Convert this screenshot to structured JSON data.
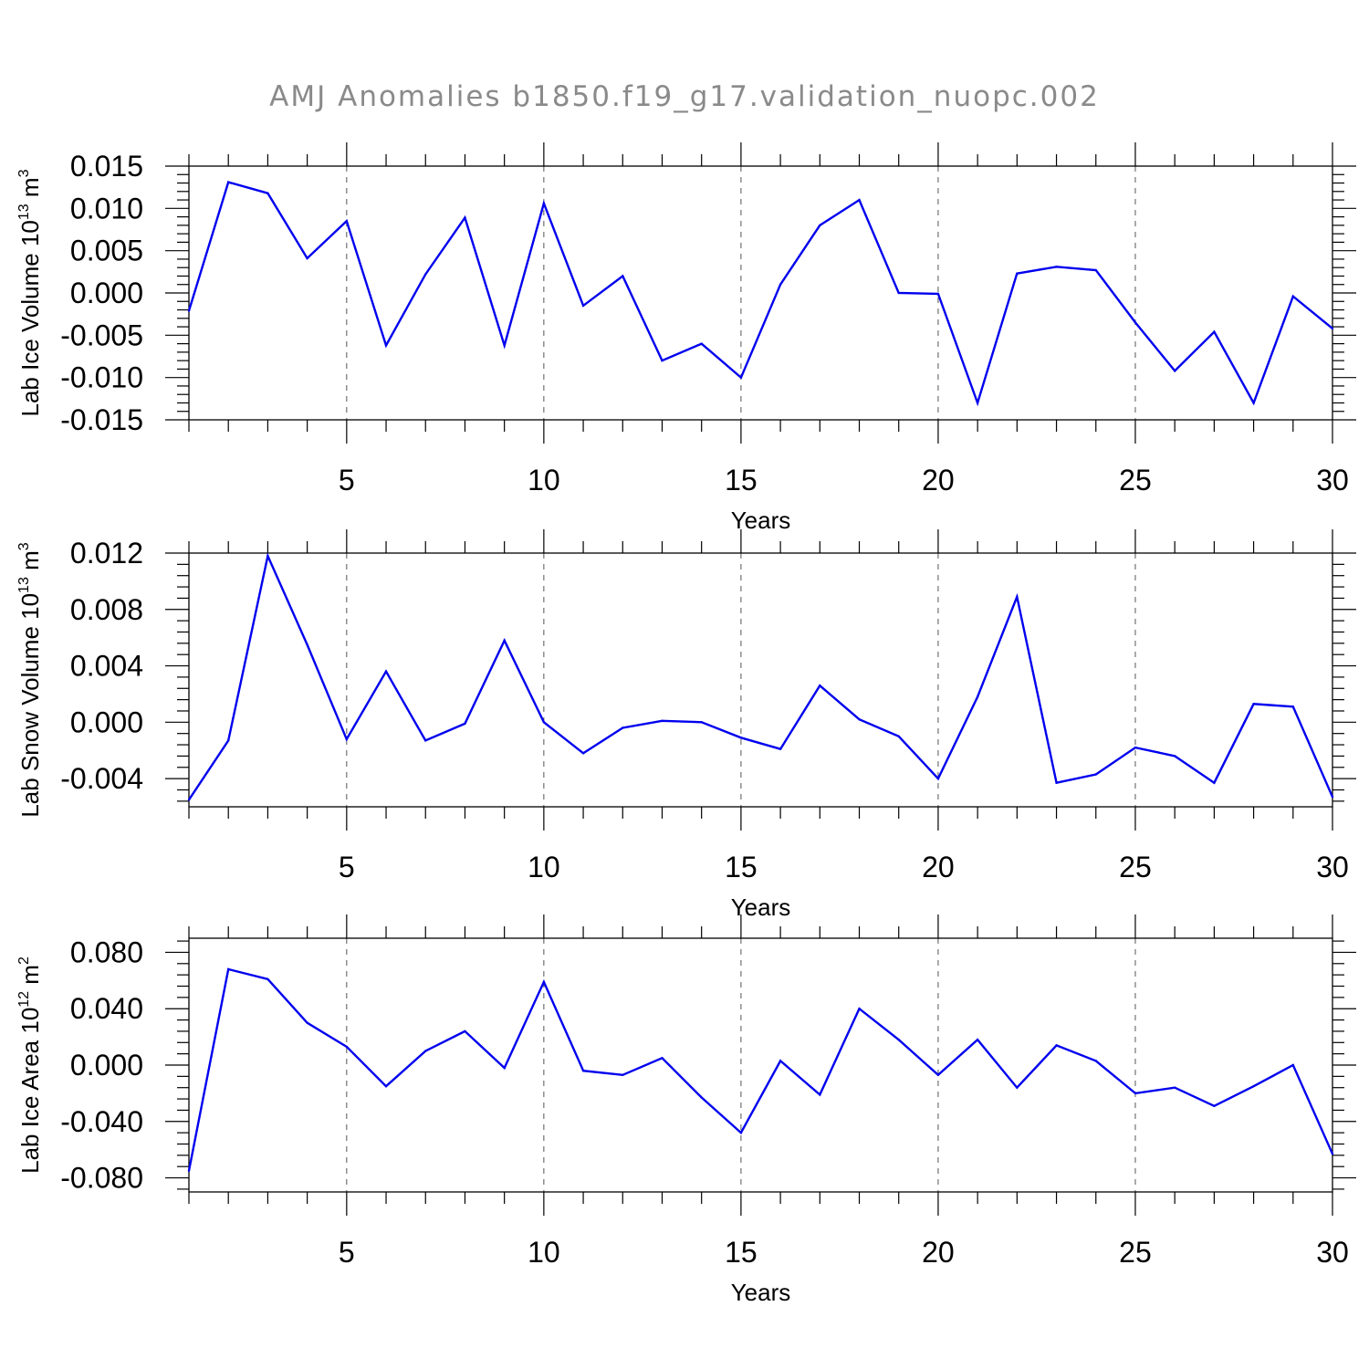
{
  "title": "AMJ Anomalies b1850.f19_g17.validation_nuopc.002",
  "line_color": "#0000ee",
  "chart_data": [
    {
      "type": "line",
      "xlabel": "Years",
      "ylabel": {
        "text": "Lab Ice Volume 10",
        "exp": "13",
        "unit": " m",
        "unit_exp": "3"
      },
      "xlim": [
        1,
        30
      ],
      "ylim": [
        -0.015,
        0.015
      ],
      "yticks": [
        -0.015,
        -0.01,
        -0.005,
        0,
        0.005,
        0.01,
        0.015
      ],
      "ytick_labels": [
        "-0.015",
        "-0.010",
        "-0.005",
        "0.000",
        "0.005",
        "0.010",
        "0.015"
      ],
      "xticks": [
        5,
        10,
        15,
        20,
        25,
        30
      ],
      "xtick_labels": [
        "5",
        "10",
        "15",
        "20",
        "25",
        "30"
      ],
      "grid": "vertical dashed at major x ticks",
      "x": [
        1,
        2,
        3,
        4,
        5,
        6,
        7,
        8,
        9,
        10,
        11,
        12,
        13,
        14,
        15,
        16,
        17,
        18,
        19,
        20,
        21,
        22,
        23,
        24,
        25,
        26,
        27,
        28,
        29,
        30
      ],
      "values": [
        -0.0021,
        0.0131,
        0.0118,
        0.0041,
        0.0085,
        -0.0062,
        0.0022,
        0.0089,
        -0.0062,
        0.0106,
        -0.0015,
        0.002,
        -0.008,
        -0.006,
        -0.01,
        0.001,
        0.008,
        0.011,
        0.0,
        -0.0001,
        -0.013,
        0.0023,
        0.0031,
        0.0027,
        -0.0035,
        -0.0092,
        -0.0046,
        -0.013,
        -0.0004,
        -0.0042
      ]
    },
    {
      "type": "line",
      "xlabel": "Years",
      "ylabel": {
        "text": "Lab Snow Volume 10",
        "exp": "13",
        "unit": " m",
        "unit_exp": "3"
      },
      "xlim": [
        1,
        30
      ],
      "ylim": [
        -0.006,
        0.012
      ],
      "yticks": [
        -0.004,
        0,
        0.004,
        0.008,
        0.012
      ],
      "ytick_labels": [
        "-0.004",
        "0.000",
        "0.004",
        "0.008",
        "0.012"
      ],
      "xticks": [
        5,
        10,
        15,
        20,
        25,
        30
      ],
      "xtick_labels": [
        "5",
        "10",
        "15",
        "20",
        "25",
        "30"
      ],
      "grid": "vertical dashed at major x ticks",
      "x": [
        1,
        2,
        3,
        4,
        5,
        6,
        7,
        8,
        9,
        10,
        11,
        12,
        13,
        14,
        15,
        16,
        17,
        18,
        19,
        20,
        21,
        22,
        23,
        24,
        25,
        26,
        27,
        28,
        29,
        30
      ],
      "values": [
        -0.0055,
        -0.0013,
        0.0118,
        0.0055,
        -0.0012,
        0.0036,
        -0.0013,
        -0.0001,
        0.0058,
        0.0,
        -0.0022,
        -0.0004,
        0.0001,
        0.0,
        -0.0011,
        -0.0019,
        0.0026,
        0.0002,
        -0.001,
        -0.004,
        0.0018,
        0.0089,
        -0.0043,
        -0.0037,
        -0.0018,
        -0.0024,
        -0.0043,
        0.0013,
        0.0011,
        -0.0053
      ]
    },
    {
      "type": "line",
      "xlabel": "Years",
      "ylabel": {
        "text": "Lab Ice Area 10",
        "exp": "12",
        "unit": " m",
        "unit_exp": "2"
      },
      "xlim": [
        1,
        30
      ],
      "ylim": [
        -0.09,
        0.09
      ],
      "yticks": [
        -0.08,
        -0.04,
        0,
        0.04,
        0.08
      ],
      "ytick_labels": [
        "-0.080",
        "-0.040",
        "0.000",
        "0.040",
        "0.080"
      ],
      "xticks": [
        5,
        10,
        15,
        20,
        25,
        30
      ],
      "xtick_labels": [
        "5",
        "10",
        "15",
        "20",
        "25",
        "30"
      ],
      "grid": "vertical dashed at major x ticks",
      "x": [
        1,
        2,
        3,
        4,
        5,
        6,
        7,
        8,
        9,
        10,
        11,
        12,
        13,
        14,
        15,
        16,
        17,
        18,
        19,
        20,
        21,
        22,
        23,
        24,
        25,
        26,
        27,
        28,
        29,
        30
      ],
      "values": [
        -0.075,
        0.068,
        0.061,
        0.03,
        0.013,
        -0.015,
        0.01,
        0.024,
        -0.002,
        0.059,
        -0.004,
        -0.007,
        0.005,
        -0.023,
        -0.048,
        0.003,
        -0.021,
        0.04,
        0.018,
        -0.007,
        0.018,
        -0.016,
        0.014,
        0.003,
        -0.02,
        -0.016,
        -0.029,
        -0.015,
        0.0,
        -0.063
      ]
    }
  ]
}
